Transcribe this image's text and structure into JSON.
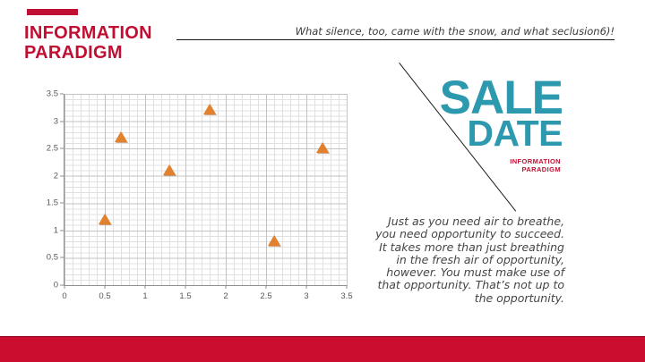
{
  "colors": {
    "accent": "#C00F33",
    "footer": "#CB0E2F",
    "teal": "#2C99AE",
    "orange": "#E2812D"
  },
  "header": {
    "title_line1": "INFORMATION",
    "title_line2": "PARADIGM",
    "quote": "What silence, too, came with the snow, and what seclusion6)!"
  },
  "right_panel": {
    "sale_word": "SALE",
    "date_word": "DATE",
    "brand_line1": "INFORMATION",
    "brand_line2": "PARADIGM",
    "body_lines": [
      "Just as you need air to breathe,",
      "you need opportunity to succeed.",
      "It takes more than just breathing",
      "in the fresh air of opportunity,",
      "however. You must make use of",
      "that opportunity. That’s not up to",
      "the opportunity."
    ]
  },
  "chart_data": {
    "type": "scatter",
    "title": "",
    "xlabel": "",
    "ylabel": "",
    "xlim": [
      0,
      3.5
    ],
    "ylim": [
      0,
      3.5
    ],
    "x_ticks": [
      0,
      0.5,
      1,
      1.5,
      2,
      2.5,
      3,
      3.5
    ],
    "y_ticks": [
      0,
      0.5,
      1,
      1.5,
      2,
      2.5,
      3,
      3.5
    ],
    "grid": "major+minor",
    "legend": "none",
    "marker": "triangle",
    "points": [
      {
        "x": 0.5,
        "y": 1.2
      },
      {
        "x": 0.7,
        "y": 2.7
      },
      {
        "x": 1.3,
        "y": 2.1
      },
      {
        "x": 1.8,
        "y": 3.2
      },
      {
        "x": 2.6,
        "y": 0.8
      },
      {
        "x": 3.2,
        "y": 2.5
      }
    ]
  }
}
